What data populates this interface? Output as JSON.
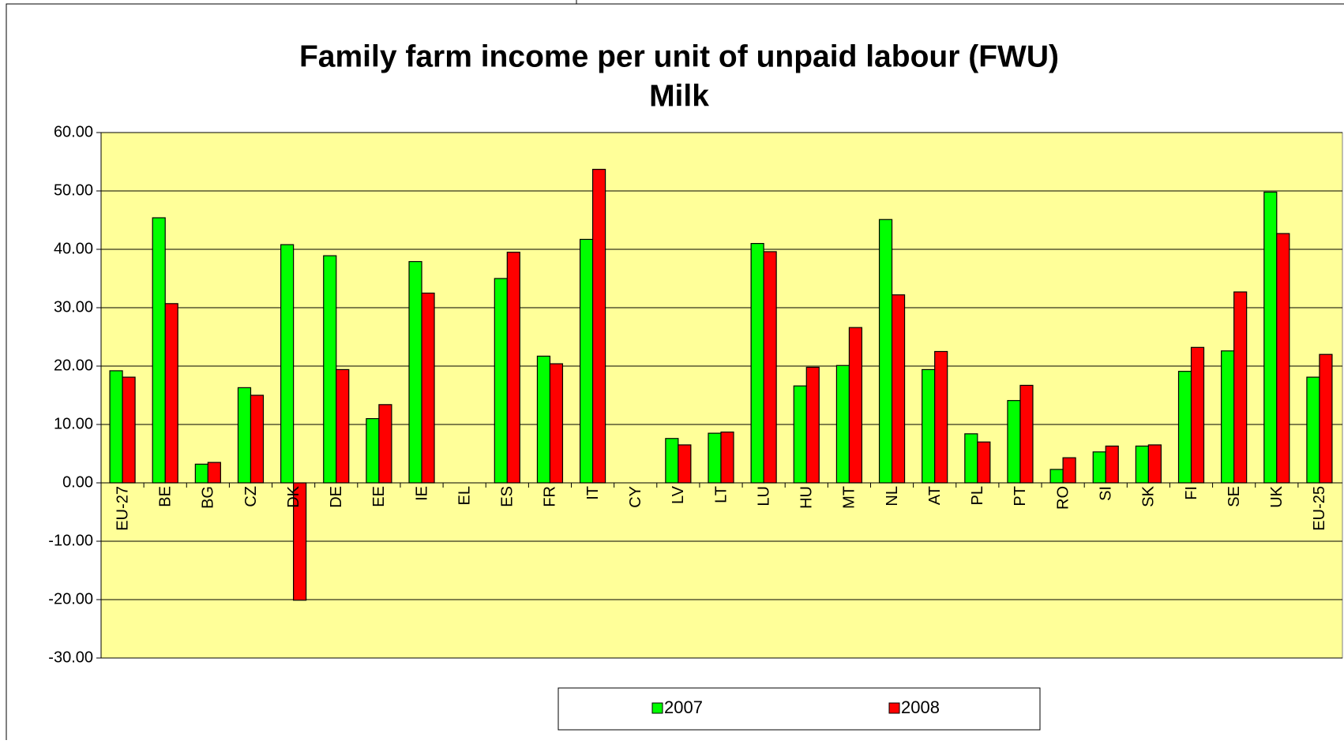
{
  "chart_data": {
    "type": "bar",
    "title": "Family farm income per unit of unpaid labour (FWU)",
    "subtitle": "Milk",
    "categories": [
      "EU-27",
      "BE",
      "BG",
      "CZ",
      "DK",
      "DE",
      "EE",
      "IE",
      "EL",
      "ES",
      "FR",
      "IT",
      "CY",
      "LV",
      "LT",
      "LU",
      "HU",
      "MT",
      "NL",
      "AT",
      "PL",
      "PT",
      "RO",
      "SI",
      "SK",
      "FI",
      "SE",
      "UK",
      "EU-25"
    ],
    "series": [
      {
        "name": "2007",
        "color": "#00ff00",
        "values": [
          19.2,
          45.4,
          3.2,
          16.3,
          40.8,
          38.9,
          11.0,
          37.9,
          null,
          35.0,
          21.7,
          41.7,
          null,
          7.6,
          8.5,
          41.0,
          16.6,
          20.1,
          45.1,
          19.4,
          8.4,
          14.1,
          2.3,
          5.3,
          6.3,
          19.1,
          22.6,
          49.8,
          18.1
        ]
      },
      {
        "name": "2008",
        "color": "#ff0000",
        "values": [
          18.1,
          30.7,
          3.5,
          15.0,
          -20.1,
          19.4,
          13.4,
          32.5,
          null,
          39.5,
          20.4,
          53.7,
          null,
          6.5,
          8.7,
          39.6,
          19.8,
          26.6,
          32.2,
          22.5,
          7.0,
          16.7,
          4.3,
          6.3,
          6.5,
          23.2,
          32.7,
          42.7,
          22.0
        ]
      }
    ],
    "ylim": [
      -30,
      60
    ],
    "yticks": [
      {
        "value": -30,
        "label": "-30.00"
      },
      {
        "value": -20,
        "label": "-20.00"
      },
      {
        "value": -10,
        "label": "-10.00"
      },
      {
        "value": 0,
        "label": "0.00"
      },
      {
        "value": 10,
        "label": "10.00"
      },
      {
        "value": 20,
        "label": "20.00"
      },
      {
        "value": 30,
        "label": "30.00"
      },
      {
        "value": 40,
        "label": "40.00"
      },
      {
        "value": 50,
        "label": "50.00"
      },
      {
        "value": 60,
        "label": "60.00"
      }
    ],
    "grid": true,
    "background": "#ffff99",
    "legend": "bottom"
  }
}
